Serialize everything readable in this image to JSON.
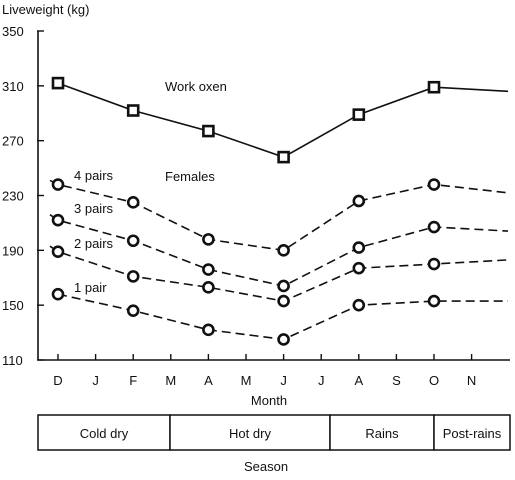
{
  "chart_data": {
    "type": "line",
    "ylabel": "Liveweight (kg)",
    "xlabel": "Month",
    "ylim": [
      110,
      350
    ],
    "yticks": [
      110,
      150,
      190,
      230,
      270,
      310,
      350
    ],
    "categories": [
      "D",
      "J",
      "F",
      "M",
      "A",
      "M",
      "J",
      "J",
      "A",
      "S",
      "O",
      "N"
    ],
    "series": [
      {
        "name": "Work oxen",
        "style": "solid",
        "marker": "square",
        "x": [
          "D",
          "F",
          "A",
          "J",
          "A",
          "O"
        ],
        "values": [
          312,
          292,
          277,
          258,
          289,
          309
        ],
        "end_value": 306
      },
      {
        "name": "4 pairs",
        "style": "dashed",
        "marker": "circle",
        "x": [
          "D",
          "F",
          "A",
          "J",
          "A",
          "O"
        ],
        "values": [
          238,
          225,
          198,
          190,
          226,
          238
        ],
        "start_value": 241,
        "end_value": 232
      },
      {
        "name": "3 pairs",
        "style": "dashed",
        "marker": "circle",
        "x": [
          "D",
          "F",
          "A",
          "J",
          "A",
          "O"
        ],
        "values": [
          212,
          197,
          176,
          164,
          192,
          207
        ],
        "start_value": 216,
        "end_value": 204
      },
      {
        "name": "2 pairs",
        "style": "dashed",
        "marker": "circle",
        "x": [
          "D",
          "F",
          "A",
          "J",
          "A",
          "O"
        ],
        "values": [
          189,
          171,
          163,
          153,
          177,
          180
        ],
        "start_value": 193,
        "end_value": 183
      },
      {
        "name": "1 pair",
        "style": "dashed",
        "marker": "circle",
        "x": [
          "D",
          "F",
          "A",
          "J",
          "A",
          "O"
        ],
        "values": [
          158,
          146,
          132,
          125,
          150,
          153
        ],
        "end_value": 153
      }
    ],
    "annotations": [
      "Work oxen",
      "Females"
    ],
    "seasons": {
      "label": "Season",
      "items": [
        "Cold dry",
        "Hot dry",
        "Rains",
        "Post-rains"
      ]
    },
    "grid": false
  }
}
